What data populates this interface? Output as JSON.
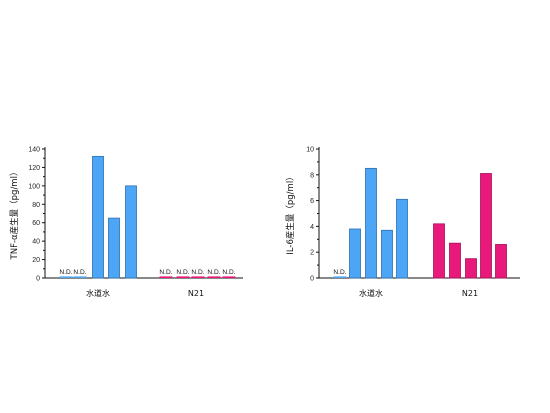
{
  "chart_data": [
    {
      "type": "bar",
      "ylabel": "TNF-α産生量（pg/ml）",
      "ylim": [
        0,
        140
      ],
      "yticks": [
        0,
        20,
        40,
        60,
        80,
        100,
        120,
        140
      ],
      "groups": [
        "水道水",
        "N21"
      ],
      "series": [
        {
          "group": "水道水",
          "color": "#4da6f5",
          "values": [
            null,
            null,
            132,
            65,
            100
          ],
          "labels": [
            "N.D.",
            "N.D.",
            "",
            "",
            ""
          ]
        },
        {
          "group": "N21",
          "color": "#e8197a",
          "values": [
            null,
            null,
            null,
            null,
            null
          ],
          "labels": [
            "N.D.",
            "N.D.",
            "N.D.",
            "N.D.",
            "N.D."
          ]
        }
      ]
    },
    {
      "type": "bar",
      "ylabel": "IL-6産生量（pg/ml）",
      "ylim": [
        0,
        10
      ],
      "yticks": [
        0,
        2,
        4,
        6,
        8,
        10
      ],
      "groups": [
        "水道水",
        "N21"
      ],
      "series": [
        {
          "group": "水道水",
          "color": "#4da6f5",
          "values": [
            null,
            3.8,
            8.5,
            3.7,
            6.1
          ],
          "labels": [
            "N.D.",
            "",
            "",
            "",
            ""
          ]
        },
        {
          "group": "N21",
          "color": "#e8197a",
          "values": [
            4.2,
            2.7,
            1.5,
            8.1,
            2.6
          ],
          "labels": [
            "",
            "",
            "",
            "",
            ""
          ]
        }
      ]
    }
  ]
}
